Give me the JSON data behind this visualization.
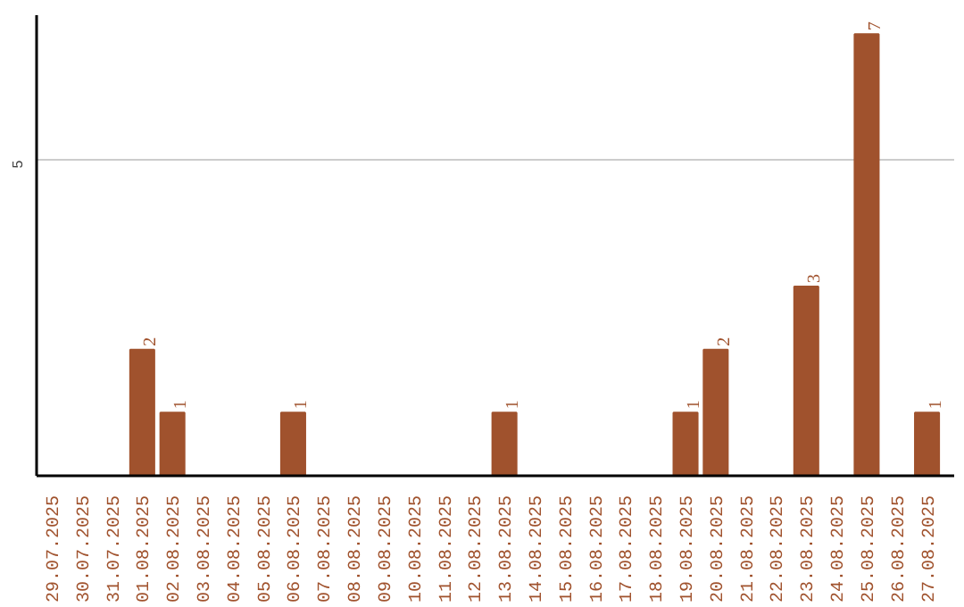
{
  "chart_data": {
    "type": "bar",
    "categories": [
      "29.07.2025",
      "30.07.2025",
      "31.07.2025",
      "01.08.2025",
      "02.08.2025",
      "03.08.2025",
      "04.08.2025",
      "05.08.2025",
      "06.08.2025",
      "07.08.2025",
      "08.08.2025",
      "09.08.2025",
      "10.08.2025",
      "11.08.2025",
      "12.08.2025",
      "13.08.2025",
      "14.08.2025",
      "15.08.2025",
      "16.08.2025",
      "17.08.2025",
      "18.08.2025",
      "19.08.2025",
      "20.08.2025",
      "21.08.2025",
      "22.08.2025",
      "23.08.2025",
      "24.08.2025",
      "25.08.2025",
      "26.08.2025",
      "27.08.2025"
    ],
    "values": [
      0,
      0,
      0,
      2,
      1,
      0,
      0,
      0,
      1,
      0,
      0,
      0,
      0,
      0,
      0,
      1,
      0,
      0,
      0,
      0,
      0,
      1,
      2,
      0,
      0,
      3,
      0,
      7,
      0,
      1
    ],
    "value_labels": [
      null,
      null,
      null,
      "2",
      "1",
      null,
      null,
      null,
      "1",
      null,
      null,
      null,
      null,
      null,
      null,
      "1",
      null,
      null,
      null,
      null,
      null,
      "1",
      "2",
      null,
      null,
      "3",
      null,
      "7",
      null,
      "1"
    ],
    "color": "#a0522d",
    "ylim": [
      0,
      7.3
    ],
    "yticks": [
      5
    ],
    "grid": "y"
  }
}
